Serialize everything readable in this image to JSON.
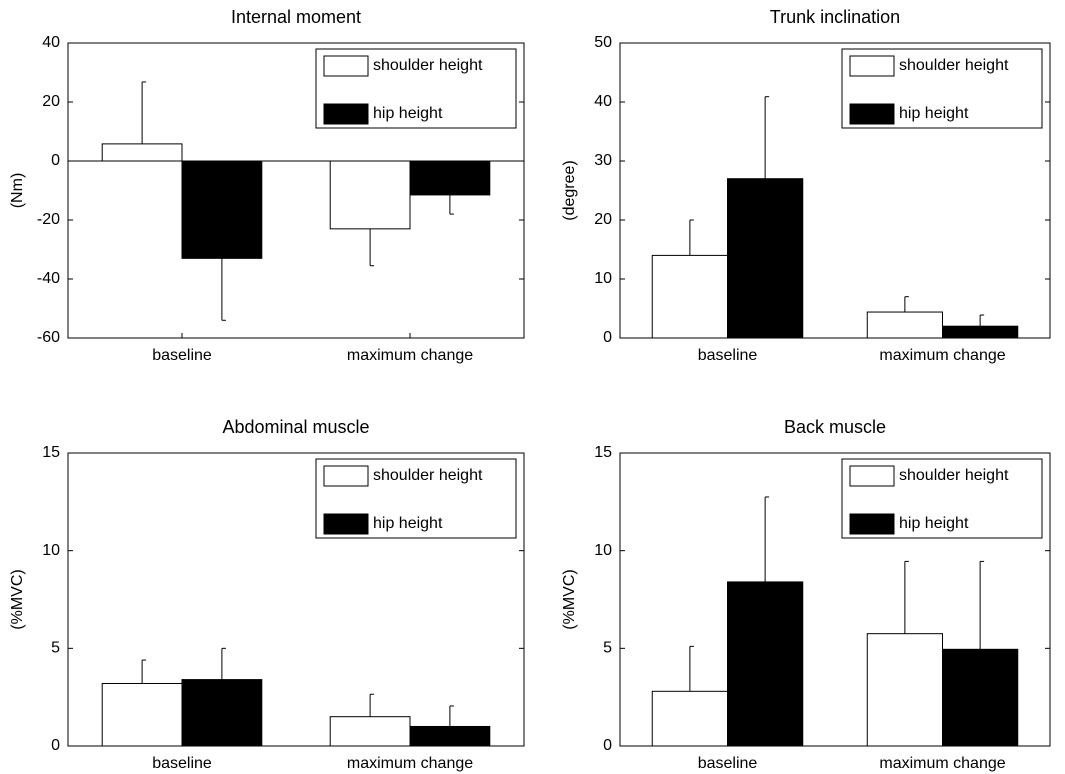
{
  "chart_data": [
    {
      "type": "bar",
      "title": "Internal moment",
      "ylabel": "(Nm)",
      "categories": [
        "baseline",
        "maximum change"
      ],
      "series": [
        {
          "name": "shoulder height",
          "color": "#ffffff",
          "values": [
            5.8,
            -23
          ],
          "errors": [
            21,
            12.5
          ]
        },
        {
          "name": "hip height",
          "color": "#000000",
          "values": [
            -33,
            -11.5
          ],
          "errors": [
            21,
            6.5
          ]
        }
      ],
      "ylim": [
        -60,
        40
      ],
      "yticks": [
        -60,
        -40,
        -20,
        0,
        20,
        40
      ],
      "legend": "upper right"
    },
    {
      "type": "bar",
      "title": "Trunk inclination",
      "ylabel": "(degree)",
      "categories": [
        "baseline",
        "maximum change"
      ],
      "series": [
        {
          "name": "shoulder height",
          "color": "#ffffff",
          "values": [
            14,
            4.4
          ],
          "errors": [
            6,
            2.6
          ]
        },
        {
          "name": "hip height",
          "color": "#000000",
          "values": [
            27,
            2
          ],
          "errors": [
            13.9,
            1.9
          ]
        }
      ],
      "ylim": [
        0,
        50
      ],
      "yticks": [
        0,
        10,
        20,
        30,
        40,
        50
      ],
      "legend": "upper right"
    },
    {
      "type": "bar",
      "title": "Abdominal muscle",
      "ylabel": "(%MVC)",
      "categories": [
        "baseline",
        "maximum change"
      ],
      "series": [
        {
          "name": "shoulder height",
          "color": "#ffffff",
          "values": [
            3.2,
            1.5
          ],
          "errors": [
            1.2,
            1.15
          ]
        },
        {
          "name": "hip height",
          "color": "#000000",
          "values": [
            3.4,
            1.0
          ],
          "errors": [
            1.6,
            1.05
          ]
        }
      ],
      "ylim": [
        0,
        15
      ],
      "yticks": [
        0,
        5,
        10,
        15
      ],
      "legend": "upper right"
    },
    {
      "type": "bar",
      "title": "Back muscle",
      "ylabel": "(%MVC)",
      "categories": [
        "baseline",
        "maximum change"
      ],
      "series": [
        {
          "name": "shoulder height",
          "color": "#ffffff",
          "values": [
            2.8,
            5.75
          ],
          "errors": [
            2.3,
            3.7
          ]
        },
        {
          "name": "hip height",
          "color": "#000000",
          "values": [
            8.4,
            4.95
          ],
          "errors": [
            4.35,
            4.5
          ]
        }
      ],
      "ylim": [
        0,
        15
      ],
      "yticks": [
        0,
        5,
        10,
        15
      ],
      "legend": "upper right"
    }
  ]
}
